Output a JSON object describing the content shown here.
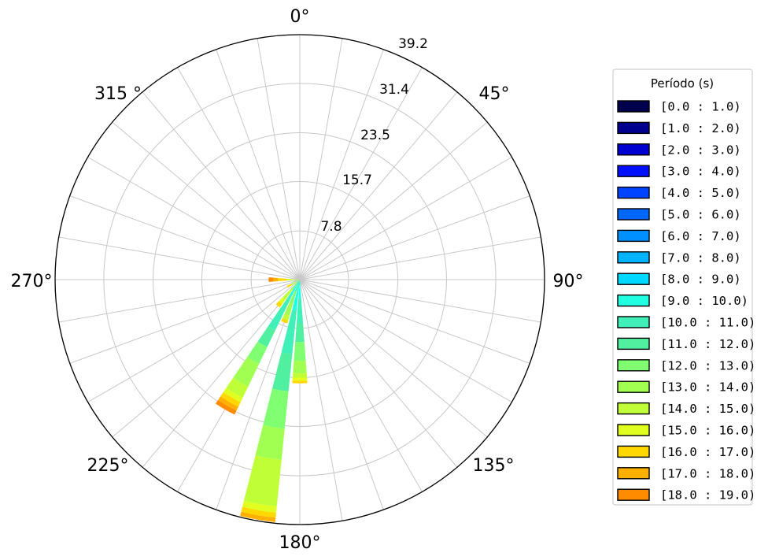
{
  "chart_data": {
    "type": "windrose",
    "direction_labels": [
      "0°",
      "45°",
      "90°",
      "135°",
      "180°",
      "225°",
      "270°",
      "315 °"
    ],
    "direction_label_angles": [
      0,
      45,
      90,
      135,
      180,
      225,
      270,
      315
    ],
    "radial_ticks": [
      "7.8",
      "15.7",
      "23.5",
      "31.4",
      "39.2"
    ],
    "radial_tick_values": [
      7.8,
      15.7,
      23.5,
      31.4,
      39.2
    ],
    "rmax": 39.2,
    "grid": true,
    "sector_count": 36,
    "legend": {
      "title": "Período (s)",
      "placement": "right",
      "entries": [
        "[0.0 : 1.0)",
        "[1.0 : 2.0)",
        "[2.0 : 3.0)",
        "[3.0 : 4.0)",
        "[4.0 : 5.0)",
        "[5.0 : 6.0)",
        "[6.0 : 7.0)",
        "[7.0 : 8.0)",
        "[8.0 : 9.0)",
        "[9.0 : 10.0)",
        "[10.0 : 11.0)",
        "[11.0 : 12.0)",
        "[12.0 : 13.0)",
        "[13.0 : 14.0)",
        "[14.0 : 15.0)",
        "[15.0 : 16.0)",
        "[16.0 : 17.0)",
        "[17.0 : 18.0)",
        "[18.0 : 19.0)"
      ],
      "colors": [
        "#00004d",
        "#00008f",
        "#0000d0",
        "#0010ff",
        "#0044ff",
        "#0068ff",
        "#0090ff",
        "#00b4ff",
        "#00d8ff",
        "#20ffe0",
        "#40f0b8",
        "#50f0a0",
        "#80ff70",
        "#a0ff50",
        "#c0ff38",
        "#e0ff20",
        "#ffd800",
        "#ffb000",
        "#ff8c00"
      ]
    },
    "bars": [
      {
        "direction": 190,
        "segments": [
          {
            "bin": 9,
            "r0": 0,
            "r1": 5
          },
          {
            "bin": 10,
            "r0": 5,
            "r1": 12
          },
          {
            "bin": 11,
            "r0": 12,
            "r1": 18
          },
          {
            "bin": 12,
            "r0": 18,
            "r1": 24
          },
          {
            "bin": 13,
            "r0": 24,
            "r1": 29
          },
          {
            "bin": 14,
            "r0": 29,
            "r1": 36.5
          },
          {
            "bin": 15,
            "r0": 36.5,
            "r1": 37.5
          },
          {
            "bin": 16,
            "r0": 37.5,
            "r1": 38.3
          },
          {
            "bin": 17,
            "r0": 38.3,
            "r1": 39.0
          }
        ]
      },
      {
        "direction": 210,
        "segments": [
          {
            "bin": 9,
            "r0": 0,
            "r1": 3
          },
          {
            "bin": 10,
            "r0": 3,
            "r1": 9
          },
          {
            "bin": 11,
            "r0": 9,
            "r1": 12
          },
          {
            "bin": 12,
            "r0": 12,
            "r1": 15
          },
          {
            "bin": 13,
            "r0": 15,
            "r1": 19
          },
          {
            "bin": 14,
            "r0": 19,
            "r1": 21
          },
          {
            "bin": 15,
            "r0": 21,
            "r1": 21.8
          },
          {
            "bin": 16,
            "r0": 21.8,
            "r1": 22.6
          },
          {
            "bin": 17,
            "r0": 22.6,
            "r1": 23.3
          },
          {
            "bin": 18,
            "r0": 23.3,
            "r1": 24.0
          }
        ]
      },
      {
        "direction": 180,
        "segments": [
          {
            "bin": 9,
            "r0": 0,
            "r1": 3
          },
          {
            "bin": 10,
            "r0": 3,
            "r1": 7
          },
          {
            "bin": 11,
            "r0": 7,
            "r1": 10
          },
          {
            "bin": 12,
            "r0": 10,
            "r1": 13
          },
          {
            "bin": 13,
            "r0": 13,
            "r1": 15
          },
          {
            "bin": 14,
            "r0": 15,
            "r1": 15.7
          },
          {
            "bin": 15,
            "r0": 15.7,
            "r1": 16.2
          },
          {
            "bin": 16,
            "r0": 16.2,
            "r1": 16.6
          }
        ]
      },
      {
        "direction": 200,
        "segments": [
          {
            "bin": 10,
            "r0": 0,
            "r1": 2
          },
          {
            "bin": 12,
            "r0": 2,
            "r1": 4
          },
          {
            "bin": 13,
            "r0": 4,
            "r1": 6
          },
          {
            "bin": 14,
            "r0": 6,
            "r1": 6.8
          },
          {
            "bin": 16,
            "r0": 6.8,
            "r1": 7.3
          }
        ]
      },
      {
        "direction": 220,
        "segments": [
          {
            "bin": 12,
            "r0": 0,
            "r1": 2
          },
          {
            "bin": 14,
            "r0": 2,
            "r1": 4
          },
          {
            "bin": 15,
            "r0": 4,
            "r1": 4.8
          },
          {
            "bin": 16,
            "r0": 4.8,
            "r1": 5.5
          }
        ]
      },
      {
        "direction": 270,
        "segments": [
          {
            "bin": 14,
            "r0": 0,
            "r1": 2
          },
          {
            "bin": 16,
            "r0": 2,
            "r1": 3.5
          },
          {
            "bin": 17,
            "r0": 3.5,
            "r1": 4.2
          },
          {
            "bin": 18,
            "r0": 4.2,
            "r1": 5.0
          }
        ]
      },
      {
        "direction": 240,
        "segments": [
          {
            "bin": 13,
            "r0": 0,
            "r1": 1.5
          },
          {
            "bin": 16,
            "r0": 1.5,
            "r1": 2.3
          }
        ]
      }
    ]
  }
}
